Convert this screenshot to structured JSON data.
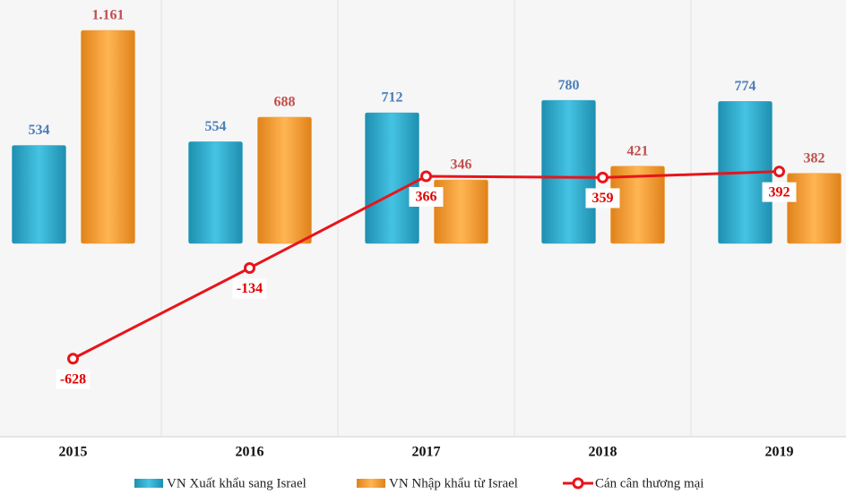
{
  "chart_data": {
    "type": "bar",
    "categories": [
      "2015",
      "2016",
      "2017",
      "2018",
      "2019"
    ],
    "series": [
      {
        "name": "VN Xuất khẩu sang Israel",
        "color": "#31a9c9",
        "values": [
          534,
          554,
          712,
          780,
          774
        ]
      },
      {
        "name": "VN Nhập khẩu từ Israel",
        "color": "#f39a2e",
        "values": [
          1161,
          688,
          346,
          421,
          382
        ],
        "value_labels": [
          "1.161",
          "688",
          "346",
          "421",
          "382"
        ]
      },
      {
        "name": "Cán cân thương mại",
        "type": "line",
        "color": "#e8141b",
        "values": [
          -628,
          -134,
          366,
          359,
          392
        ]
      }
    ],
    "ylim": [
      -1000,
      1300
    ]
  }
}
